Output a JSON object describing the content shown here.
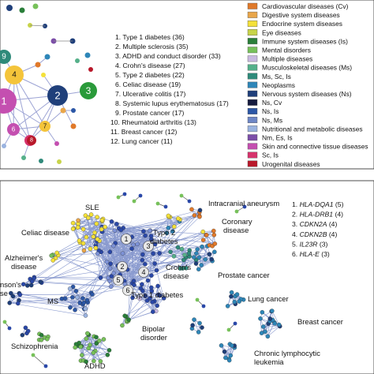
{
  "top_left_nodes": [
    "9",
    "4",
    "1",
    "2",
    "3",
    "5",
    "6",
    "7",
    "8"
  ],
  "ranked_diseases": [
    "1. Type 1 diabetes (36)",
    "2. Multiple sclerosis (35)",
    "3. ADHD and conduct disorder (33)",
    "4. Crohn's disease (27)",
    "5. Type 2 diabetes (22)",
    "6. Celiac disease (19)",
    "7. Ulcerative colitis (17)",
    "8. Systemic lupus erythematosus (17)",
    "9. Prostate cancer (17)",
    "10. Rheumatoid arthritis (13)",
    "11. Breast cancer (12)",
    "12. Lung cancer (11)"
  ],
  "legend": [
    {
      "label": "Cardiovascular diseases (Cv)",
      "color": "#e0792a"
    },
    {
      "label": "Digestive system diseases",
      "color": "#e9a64a"
    },
    {
      "label": "Endocrine system diseases",
      "color": "#f4e13a"
    },
    {
      "label": "Eye diseases",
      "color": "#c8d44a"
    },
    {
      "label": "Immune system diseases (Is)",
      "color": "#2a7f3a"
    },
    {
      "label": "Mental disorders",
      "color": "#77c15a"
    },
    {
      "label": "Multiple diseases",
      "color": "#c9b9e0"
    },
    {
      "label": "Musculoskeletal diseases (Ms)",
      "color": "#55b08a"
    },
    {
      "label": "Ms, Sc, Is",
      "color": "#2f8a7a"
    },
    {
      "label": "Neoplasms",
      "color": "#2e86b8"
    },
    {
      "label": "Nervous system diseases (Ns)",
      "color": "#1f3f7a"
    },
    {
      "label": "Ns, Cv",
      "color": "#151b3f"
    },
    {
      "label": "Ns, Is",
      "color": "#2c57a6"
    },
    {
      "label": "Ns, Ms",
      "color": "#6d86c6"
    },
    {
      "label": "Nutritional and metabolic diseases",
      "color": "#9ab3e0"
    },
    {
      "label": "Nm, Es, Is",
      "color": "#7c4ea8"
    },
    {
      "label": "Skin and connective tissue diseases",
      "color": "#c44fb0"
    },
    {
      "label": "Sc, Is",
      "color": "#d6336c"
    },
    {
      "label": "Urogenital diseases",
      "color": "#b8182a"
    }
  ],
  "network_labels": {
    "sle": "SLE",
    "intracranial": "Intracranial aneurysm",
    "coronary": "Coronary\ndisease",
    "celiac": "Celiac disease",
    "t2d": "Type 2\ndiabetes",
    "crohns": "Crohn's\ndisease",
    "alzheimers": "Alzheimer's\ndisease",
    "parkinsons": "nson's\nse",
    "prostate": "Prostate cancer",
    "ms": "MS",
    "t1d": "Type 1 diabetes",
    "lung": "Lung cancer",
    "bipolar": "Bipolar\ndisorder",
    "breast": "Breast cancer",
    "schizo": "Schizophrenia",
    "adhd": "ADHD",
    "cll": "Chronic lymphocytic\nleukemia"
  },
  "cluster_nodes": [
    "1",
    "2",
    "3",
    "4",
    "5",
    "6"
  ],
  "genes": [
    {
      "num": "1.",
      "gene": "HLA-DQA1",
      "count": "(5)"
    },
    {
      "num": "2.",
      "gene": "HLA-DRB1",
      "count": "(4)"
    },
    {
      "num": "3.",
      "gene": "CDKN2A",
      "count": "(4)"
    },
    {
      "num": "4.",
      "gene": "CDKN2B",
      "count": "(4)"
    },
    {
      "num": "5.",
      "gene": "IL23R",
      "count": "(3)"
    },
    {
      "num": "6.",
      "gene": "HLA-E",
      "count": "(3)"
    }
  ]
}
